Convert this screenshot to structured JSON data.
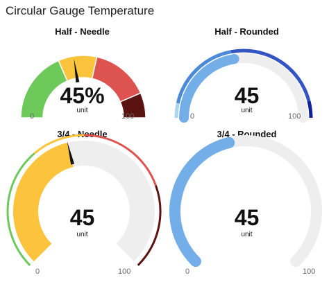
{
  "page": {
    "title": "Circular Gauge Temperature"
  },
  "colors": {
    "track": "#eeeeee",
    "green": "#6cc95a",
    "yellow": "#fcc33c",
    "red": "#dc534f",
    "darkred": "#5a1310",
    "needle": "#111111",
    "rounded_value": "#74aee8",
    "rounded_band_light": "#a9d4ec",
    "rounded_band_mid": "#4b8ad8",
    "rounded_band_blue": "#3355c4",
    "rounded_band_dark": "#10239a"
  },
  "chart_data": [
    {
      "type": "gauge",
      "title": "Half - Needle",
      "value": 45,
      "value_label": "45%",
      "unit": "unit",
      "min": 0,
      "max": 100,
      "min_label": "0",
      "max_label": "100",
      "sweep_degrees": 180,
      "indicator": "needle",
      "bands": [
        {
          "from": 0,
          "to": 37,
          "color": "green"
        },
        {
          "from": 37,
          "to": 57,
          "color": "yellow"
        },
        {
          "from": 57,
          "to": 87,
          "color": "red"
        },
        {
          "from": 87,
          "to": 100,
          "color": "darkred"
        }
      ]
    },
    {
      "type": "gauge",
      "title": "Half - Rounded",
      "value": 45,
      "value_label": "45",
      "unit": "unit",
      "min": 0,
      "max": 100,
      "min_label": "0",
      "max_label": "100",
      "sweep_degrees": 180,
      "indicator": "rounded-bar",
      "bands": [
        {
          "from": 0,
          "to": 7,
          "color": "rounded_band_light"
        },
        {
          "from": 7,
          "to": 44,
          "color": "rounded_band_mid"
        },
        {
          "from": 44,
          "to": 92,
          "color": "rounded_band_blue"
        },
        {
          "from": 92,
          "to": 100,
          "color": "rounded_band_dark"
        }
      ]
    },
    {
      "type": "gauge",
      "title": "3/4 - Needle",
      "value": 45,
      "value_label": "45",
      "unit": "unit",
      "min": 0,
      "max": 100,
      "min_label": "0",
      "max_label": "100",
      "sweep_degrees": 270,
      "indicator": "needle",
      "bands": [
        {
          "from": 0,
          "to": 35,
          "color": "green"
        },
        {
          "from": 35,
          "to": 50,
          "color": "yellow"
        },
        {
          "from": 50,
          "to": 76,
          "color": "red"
        },
        {
          "from": 76,
          "to": 100,
          "color": "darkred"
        }
      ]
    },
    {
      "type": "gauge",
      "title": "3/4 - Rounded",
      "value": 45,
      "value_label": "45",
      "unit": "unit",
      "min": 0,
      "max": 100,
      "min_label": "0",
      "max_label": "100",
      "sweep_degrees": 270,
      "indicator": "rounded-bar",
      "bands": []
    }
  ]
}
